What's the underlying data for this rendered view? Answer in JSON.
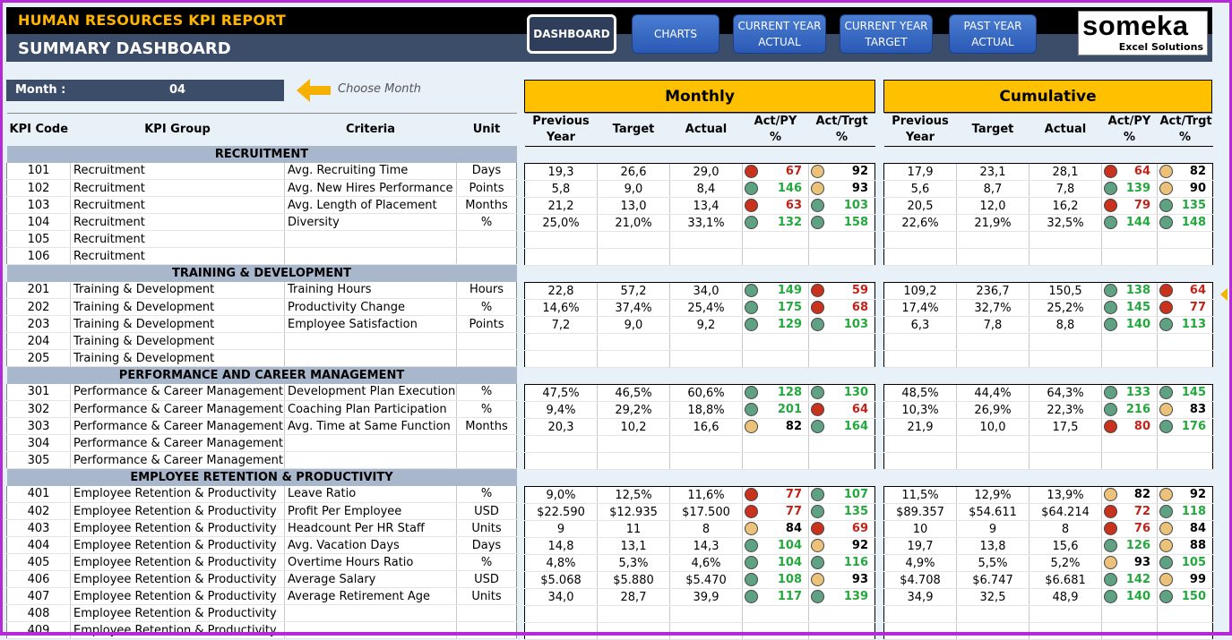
{
  "header": {
    "report_title": "HUMAN RESOURCES KPI REPORT",
    "dashboard_title": "SUMMARY DASHBOARD"
  },
  "nav": [
    {
      "label": "DASHBOARD",
      "active": true
    },
    {
      "label": "CHARTS",
      "active": false
    },
    {
      "label": "CURRENT YEAR\nACTUAL",
      "active": false
    },
    {
      "label": "CURRENT YEAR\nTARGET",
      "active": false
    },
    {
      "label": "PAST YEAR\nACTUAL",
      "active": false
    }
  ],
  "logo": {
    "brand": "someka",
    "tagline": "Excel Solutions"
  },
  "month_selector": {
    "label": "Month :",
    "value": "04",
    "hint": "Choose Month"
  },
  "panels": {
    "monthly": "Monthly",
    "cumulative": "Cumulative"
  },
  "left_headers": [
    "KPI Code",
    "KPI Group",
    "Criteria",
    "Unit"
  ],
  "metric_headers": [
    "Previous\nYear",
    "Target",
    "Actual",
    "Act/PY\n%",
    "Act/Trgt\n%"
  ],
  "colors": {
    "green": "#5fa283",
    "red": "#c9321d",
    "yellow": "#ecc27a",
    "header_orange": "#ffc000",
    "navy": "#3c4d69"
  },
  "sections": [
    {
      "title": "RECRUITMENT",
      "rows": [
        {
          "code": "101",
          "group": "Recruitment",
          "criteria": "Avg. Recruiting Time",
          "unit": "Days",
          "m": [
            "19,3",
            "26,6",
            "29,0",
            [
              "red",
              "67"
            ],
            [
              "yellow",
              "92"
            ]
          ],
          "c": [
            "17,9",
            "23,1",
            "28,1",
            [
              "red",
              "64"
            ],
            [
              "yellow",
              "82"
            ]
          ]
        },
        {
          "code": "102",
          "group": "Recruitment",
          "criteria": "Avg. New Hires Performance",
          "unit": "Points",
          "m": [
            "5,8",
            "9,0",
            "8,4",
            [
              "green",
              "146"
            ],
            [
              "yellow",
              "93"
            ]
          ],
          "c": [
            "5,6",
            "8,7",
            "7,8",
            [
              "green",
              "139"
            ],
            [
              "yellow",
              "90"
            ]
          ]
        },
        {
          "code": "103",
          "group": "Recruitment",
          "criteria": "Avg. Length of Placement",
          "unit": "Months",
          "m": [
            "21,2",
            "13,0",
            "13,4",
            [
              "red",
              "63"
            ],
            [
              "green",
              "103"
            ]
          ],
          "c": [
            "20,5",
            "12,0",
            "16,2",
            [
              "red",
              "79"
            ],
            [
              "green",
              "135"
            ]
          ]
        },
        {
          "code": "104",
          "group": "Recruitment",
          "criteria": "Diversity",
          "unit": "%",
          "m": [
            "25,0%",
            "21,0%",
            "33,1%",
            [
              "green",
              "132"
            ],
            [
              "green",
              "158"
            ]
          ],
          "c": [
            "22,6%",
            "21,9%",
            "32,5%",
            [
              "green",
              "144"
            ],
            [
              "green",
              "148"
            ]
          ]
        },
        {
          "code": "105",
          "group": "Recruitment",
          "criteria": "",
          "unit": "",
          "m": null,
          "c": null
        },
        {
          "code": "106",
          "group": "Recruitment",
          "criteria": "",
          "unit": "",
          "m": null,
          "c": null
        }
      ]
    },
    {
      "title": "TRAINING & DEVELOPMENT",
      "rows": [
        {
          "code": "201",
          "group": "Training & Development",
          "criteria": "Training Hours",
          "unit": "Hours",
          "m": [
            "22,8",
            "57,2",
            "34,0",
            [
              "green",
              "149"
            ],
            [
              "red",
              "59"
            ]
          ],
          "c": [
            "109,2",
            "236,7",
            "150,5",
            [
              "green",
              "138"
            ],
            [
              "red",
              "64"
            ]
          ]
        },
        {
          "code": "202",
          "group": "Training & Development",
          "criteria": "Productivity Change",
          "unit": "%",
          "m": [
            "14,6%",
            "37,4%",
            "25,4%",
            [
              "green",
              "175"
            ],
            [
              "red",
              "68"
            ]
          ],
          "c": [
            "17,4%",
            "32,7%",
            "25,2%",
            [
              "green",
              "145"
            ],
            [
              "red",
              "77"
            ]
          ]
        },
        {
          "code": "203",
          "group": "Training & Development",
          "criteria": "Employee Satisfaction",
          "unit": "Points",
          "m": [
            "7,2",
            "9,0",
            "9,2",
            [
              "green",
              "129"
            ],
            [
              "green",
              "103"
            ]
          ],
          "c": [
            "6,3",
            "7,8",
            "8,8",
            [
              "green",
              "140"
            ],
            [
              "green",
              "113"
            ]
          ]
        },
        {
          "code": "204",
          "group": "Training & Development",
          "criteria": "",
          "unit": "",
          "m": null,
          "c": null
        },
        {
          "code": "205",
          "group": "Training & Development",
          "criteria": "",
          "unit": "",
          "m": null,
          "c": null
        }
      ]
    },
    {
      "title": "PERFORMANCE AND CAREER MANAGEMENT",
      "rows": [
        {
          "code": "301",
          "group": "Performance & Career Management",
          "criteria": "Development Plan Execution",
          "unit": "%",
          "m": [
            "47,5%",
            "46,5%",
            "60,6%",
            [
              "green",
              "128"
            ],
            [
              "green",
              "130"
            ]
          ],
          "c": [
            "48,5%",
            "44,4%",
            "64,3%",
            [
              "green",
              "133"
            ],
            [
              "green",
              "145"
            ]
          ]
        },
        {
          "code": "302",
          "group": "Performance & Career Management",
          "criteria": "Coaching Plan Participation",
          "unit": "%",
          "m": [
            "9,4%",
            "29,2%",
            "18,8%",
            [
              "green",
              "201"
            ],
            [
              "red",
              "64"
            ]
          ],
          "c": [
            "10,3%",
            "26,9%",
            "22,3%",
            [
              "green",
              "216"
            ],
            [
              "yellow",
              "83"
            ]
          ]
        },
        {
          "code": "303",
          "group": "Performance & Career Management",
          "criteria": "Avg. Time at Same Function",
          "unit": "Months",
          "m": [
            "20,3",
            "10,2",
            "16,6",
            [
              "yellow",
              "82"
            ],
            [
              "green",
              "164"
            ]
          ],
          "c": [
            "21,9",
            "10,0",
            "17,5",
            [
              "red",
              "80"
            ],
            [
              "green",
              "176"
            ]
          ]
        },
        {
          "code": "304",
          "group": "Performance & Career Management",
          "criteria": "",
          "unit": "",
          "m": null,
          "c": null
        },
        {
          "code": "305",
          "group": "Performance & Career Management",
          "criteria": "",
          "unit": "",
          "m": null,
          "c": null
        }
      ]
    },
    {
      "title": "EMPLOYEE RETENTION & PRODUCTIVITY",
      "rows": [
        {
          "code": "401",
          "group": "Employee Retention & Productivity",
          "criteria": "Leave Ratio",
          "unit": "%",
          "m": [
            "9,0%",
            "12,5%",
            "11,6%",
            [
              "red",
              "77"
            ],
            [
              "green",
              "107"
            ]
          ],
          "c": [
            "11,5%",
            "12,9%",
            "13,9%",
            [
              "yellow",
              "82"
            ],
            [
              "yellow",
              "92"
            ]
          ]
        },
        {
          "code": "402",
          "group": "Employee Retention & Productivity",
          "criteria": "Profit Per Employee",
          "unit": "USD",
          "m": [
            "$22.590",
            "$12.935",
            "$17.500",
            [
              "red",
              "77"
            ],
            [
              "green",
              "135"
            ]
          ],
          "c": [
            "$89.357",
            "$54.611",
            "$64.214",
            [
              "red",
              "72"
            ],
            [
              "green",
              "118"
            ]
          ]
        },
        {
          "code": "403",
          "group": "Employee Retention & Productivity",
          "criteria": "Headcount Per HR Staff",
          "unit": "Units",
          "m": [
            "9",
            "11",
            "8",
            [
              "yellow",
              "84"
            ],
            [
              "red",
              "69"
            ]
          ],
          "c": [
            "10",
            "9",
            "8",
            [
              "red",
              "76"
            ],
            [
              "yellow",
              "84"
            ]
          ]
        },
        {
          "code": "404",
          "group": "Employee Retention & Productivity",
          "criteria": "Avg. Vacation Days",
          "unit": "Days",
          "m": [
            "14,8",
            "13,1",
            "14,3",
            [
              "green",
              "104"
            ],
            [
              "yellow",
              "92"
            ]
          ],
          "c": [
            "19,7",
            "13,8",
            "15,6",
            [
              "green",
              "126"
            ],
            [
              "yellow",
              "88"
            ]
          ]
        },
        {
          "code": "405",
          "group": "Employee Retention & Productivity",
          "criteria": "Overtime Hours Ratio",
          "unit": "%",
          "m": [
            "4,8%",
            "5,3%",
            "4,6%",
            [
              "green",
              "104"
            ],
            [
              "green",
              "116"
            ]
          ],
          "c": [
            "4,9%",
            "5,5%",
            "5,2%",
            [
              "yellow",
              "93"
            ],
            [
              "green",
              "105"
            ]
          ]
        },
        {
          "code": "406",
          "group": "Employee Retention & Productivity",
          "criteria": "Average Salary",
          "unit": "USD",
          "m": [
            "$5.068",
            "$5.880",
            "$5.470",
            [
              "green",
              "108"
            ],
            [
              "yellow",
              "93"
            ]
          ],
          "c": [
            "$4.708",
            "$6.747",
            "$6.681",
            [
              "green",
              "142"
            ],
            [
              "yellow",
              "99"
            ]
          ]
        },
        {
          "code": "407",
          "group": "Employee Retention & Productivity",
          "criteria": "Average Retirement Age",
          "unit": "Units",
          "m": [
            "34,0",
            "28,7",
            "39,9",
            [
              "green",
              "117"
            ],
            [
              "green",
              "139"
            ]
          ],
          "c": [
            "34,9",
            "32,5",
            "48,9",
            [
              "green",
              "140"
            ],
            [
              "green",
              "150"
            ]
          ]
        },
        {
          "code": "408",
          "group": "Employee Retention & Productivity",
          "criteria": "",
          "unit": "",
          "m": null,
          "c": null
        },
        {
          "code": "409",
          "group": "Employee Retention & Productivity",
          "criteria": "",
          "unit": "",
          "m": null,
          "c": null
        }
      ]
    }
  ]
}
